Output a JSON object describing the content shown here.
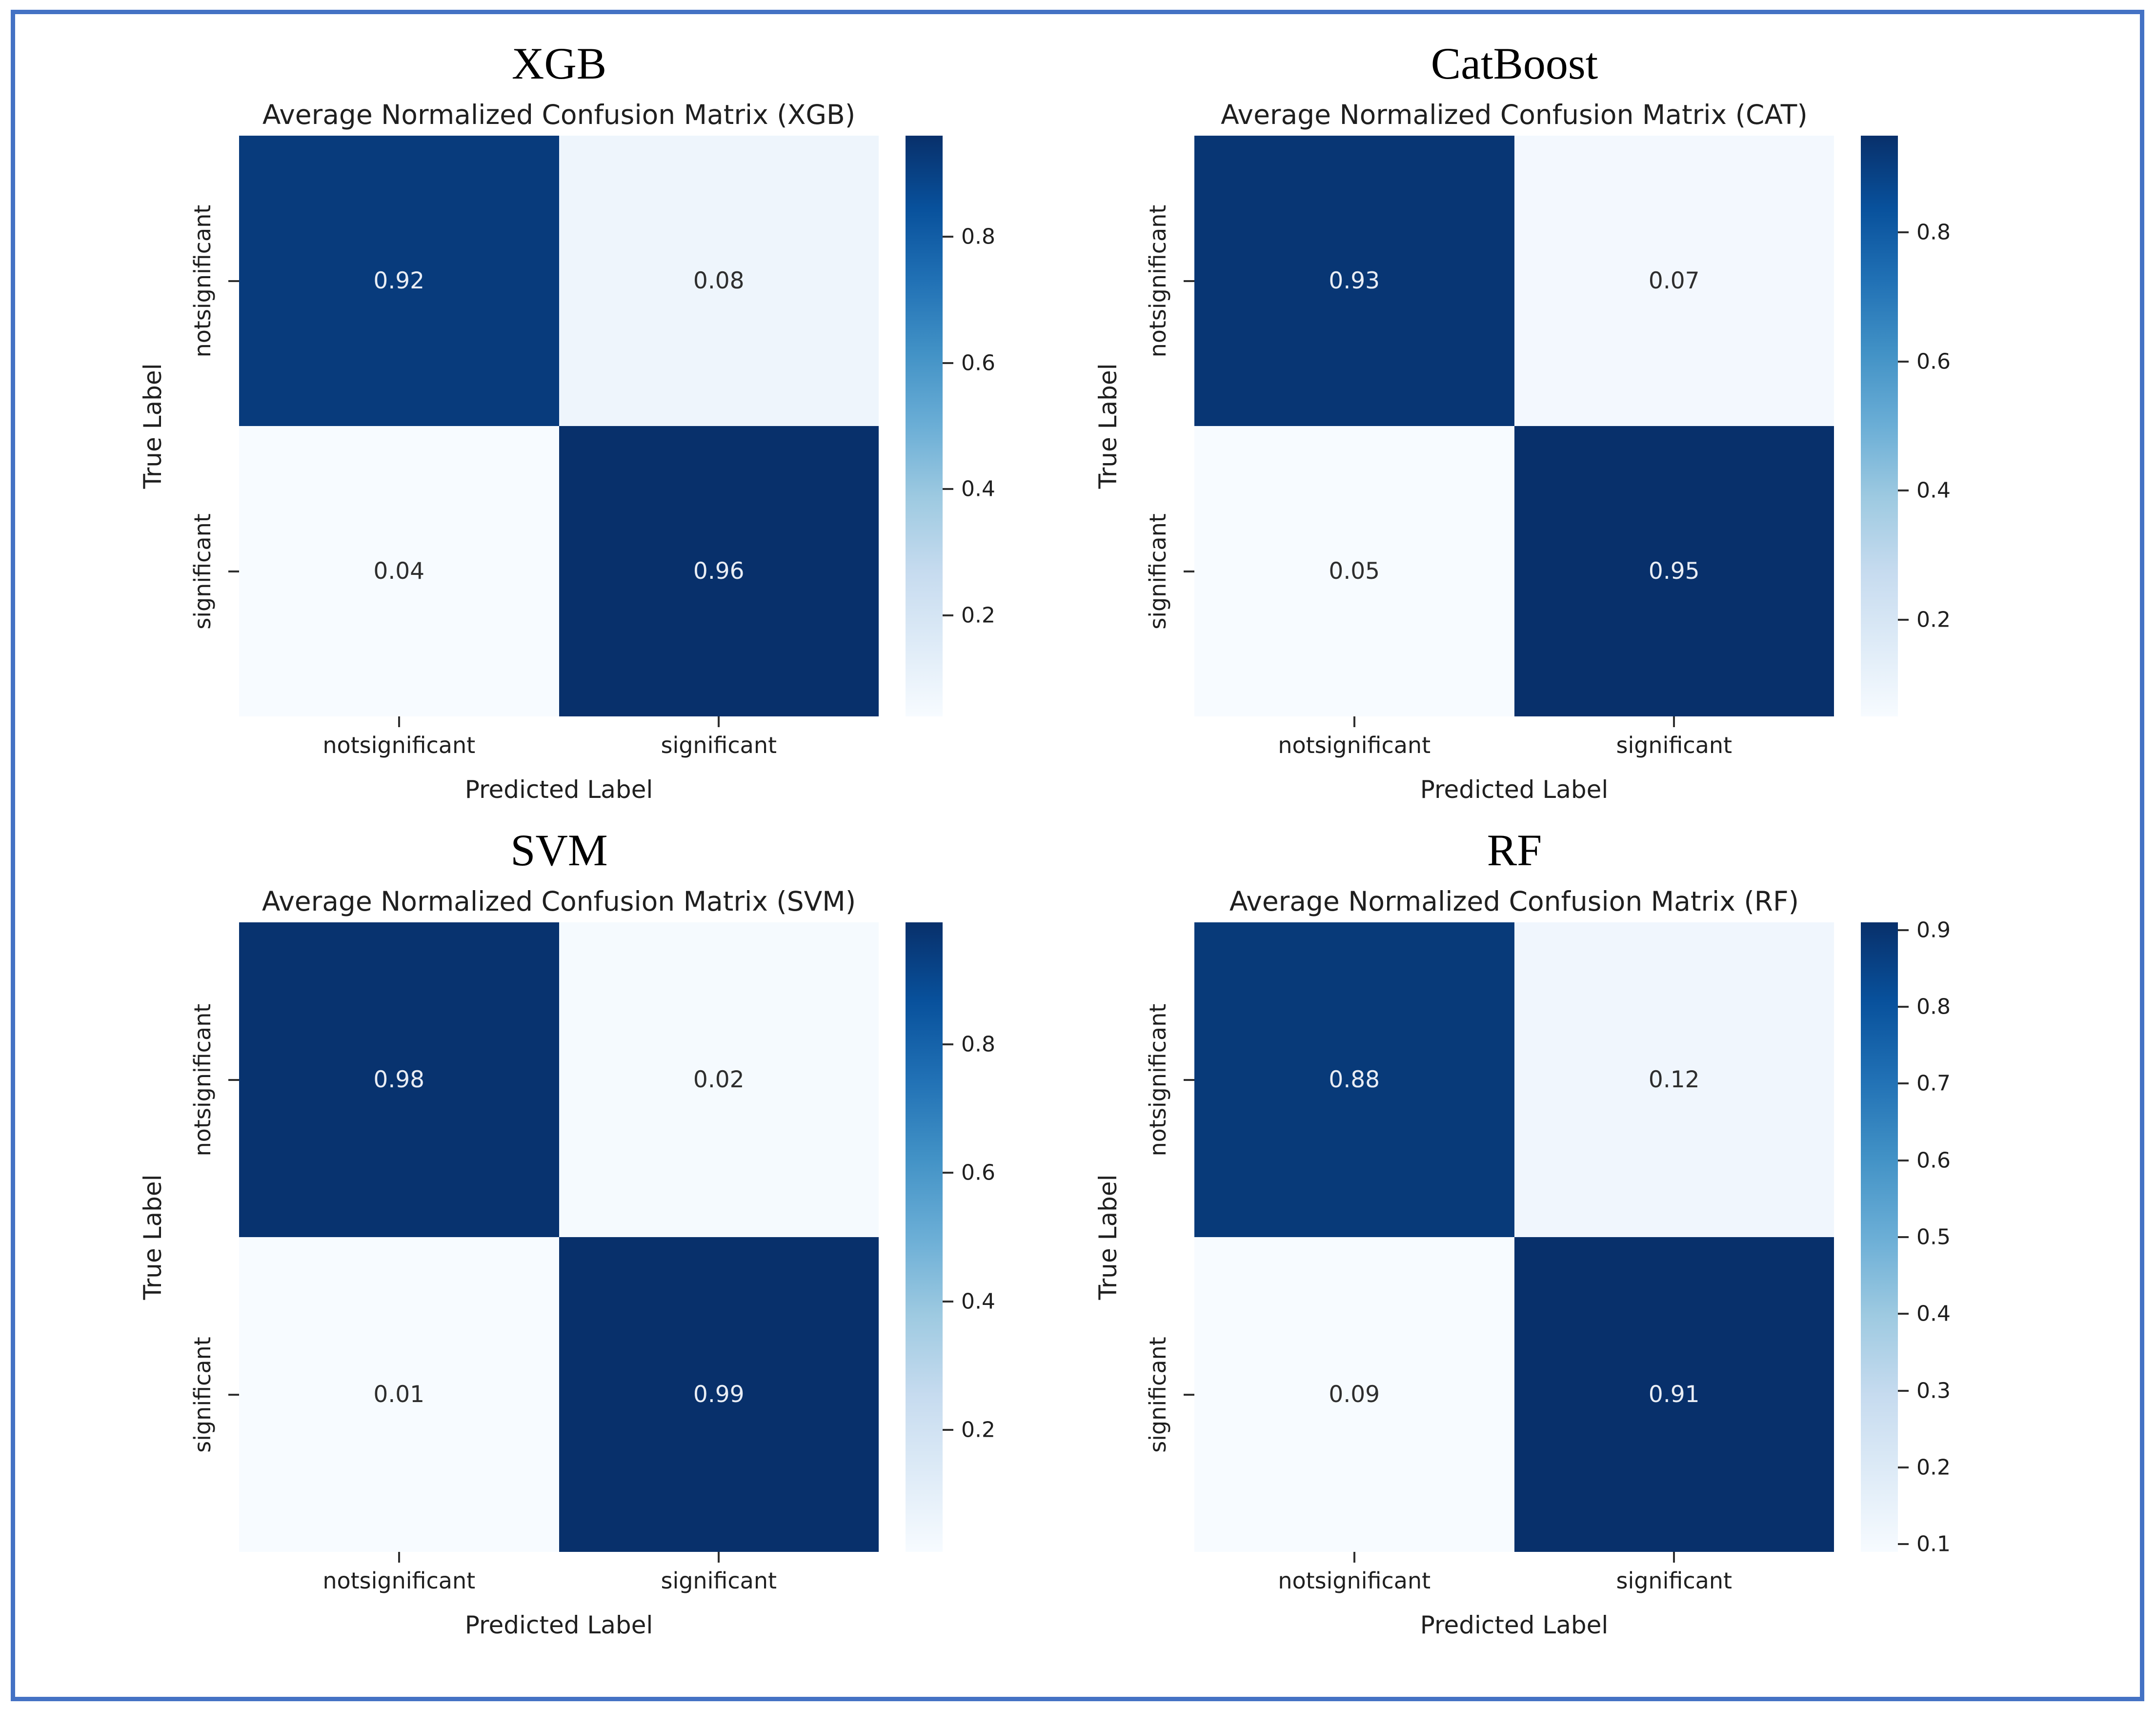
{
  "figure": {
    "border_color": "#4472c4",
    "background": "#ffffff",
    "accent_dark_blue": "#0d3b7f",
    "accent_light_blue": "#eef5fc"
  },
  "chart_data": [
    {
      "type": "heatmap",
      "panel_title": "XGB",
      "title": "Average Normalized Confusion Matrix (XGB)",
      "xlabel": "Predicted Label",
      "ylabel": "True Label",
      "categories": [
        "notsignificant",
        "significant"
      ],
      "matrix": [
        [
          0.92,
          0.08
        ],
        [
          0.04,
          0.96
        ]
      ],
      "vmin": 0.04,
      "vmax": 0.96,
      "colormap": "Blues",
      "colorbar_ticks": [
        0.8,
        0.6,
        0.4,
        0.2
      ],
      "colorbar_position": "right",
      "grid": false
    },
    {
      "type": "heatmap",
      "panel_title": "CatBoost",
      "title": "Average Normalized Confusion Matrix (CAT)",
      "xlabel": "Predicted Label",
      "ylabel": "True Label",
      "categories": [
        "notsignificant",
        "significant"
      ],
      "matrix": [
        [
          0.93,
          0.07
        ],
        [
          0.05,
          0.95
        ]
      ],
      "vmin": 0.05,
      "vmax": 0.95,
      "colormap": "Blues",
      "colorbar_ticks": [
        0.8,
        0.6,
        0.4,
        0.2
      ],
      "colorbar_position": "right",
      "grid": false
    },
    {
      "type": "heatmap",
      "panel_title": "SVM",
      "title": "Average Normalized Confusion Matrix (SVM)",
      "xlabel": "Predicted Label",
      "ylabel": "True Label",
      "categories": [
        "notsignificant",
        "significant"
      ],
      "matrix": [
        [
          0.98,
          0.02
        ],
        [
          0.01,
          0.99
        ]
      ],
      "vmin": 0.01,
      "vmax": 0.99,
      "colormap": "Blues",
      "colorbar_ticks": [
        0.8,
        0.6,
        0.4,
        0.2
      ],
      "colorbar_position": "right",
      "grid": false
    },
    {
      "type": "heatmap",
      "panel_title": "RF",
      "title": "Average Normalized Confusion Matrix (RF)",
      "xlabel": "Predicted Label",
      "ylabel": "True Label",
      "categories": [
        "notsignificant",
        "significant"
      ],
      "matrix": [
        [
          0.88,
          0.12
        ],
        [
          0.09,
          0.91
        ]
      ],
      "vmin": 0.09,
      "vmax": 0.91,
      "colormap": "Blues",
      "colorbar_ticks": [
        0.9,
        0.8,
        0.7,
        0.6,
        0.5,
        0.4,
        0.3,
        0.2,
        0.1
      ],
      "colorbar_position": "right",
      "grid": false
    }
  ]
}
